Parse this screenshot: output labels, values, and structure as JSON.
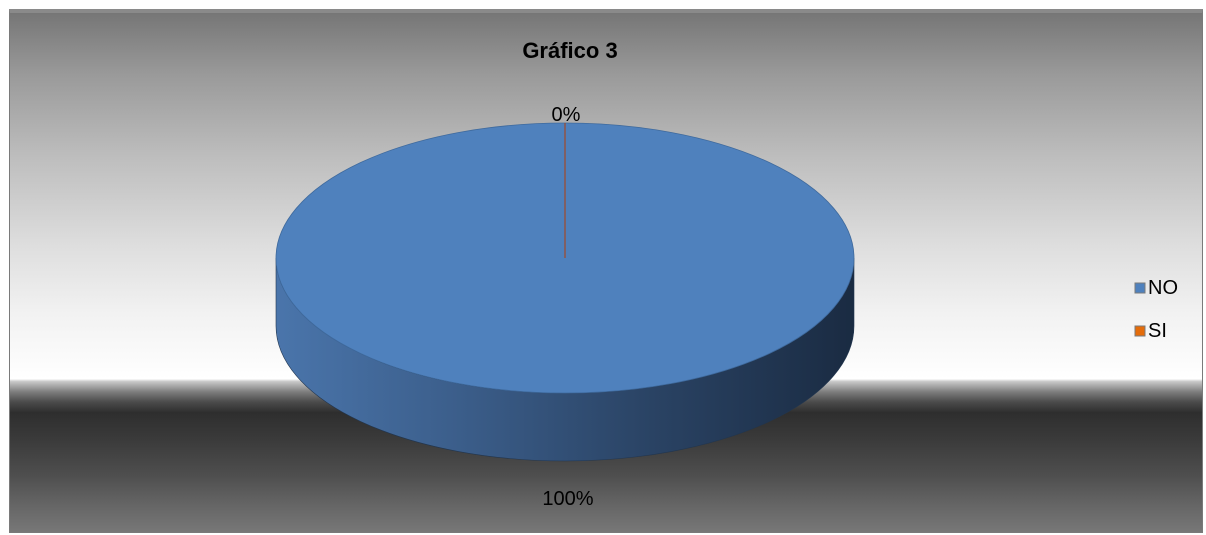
{
  "chart_data": {
    "type": "pie",
    "title": "Gráfico 3",
    "categories": [
      "NO",
      "SI"
    ],
    "values": [
      100,
      0
    ],
    "data_labels": [
      "100%",
      "0%"
    ],
    "colors": [
      "#4f81bd",
      "#e46c0a"
    ],
    "legend": {
      "position": "right",
      "entries": [
        "NO",
        "SI"
      ]
    },
    "style": "3d"
  }
}
